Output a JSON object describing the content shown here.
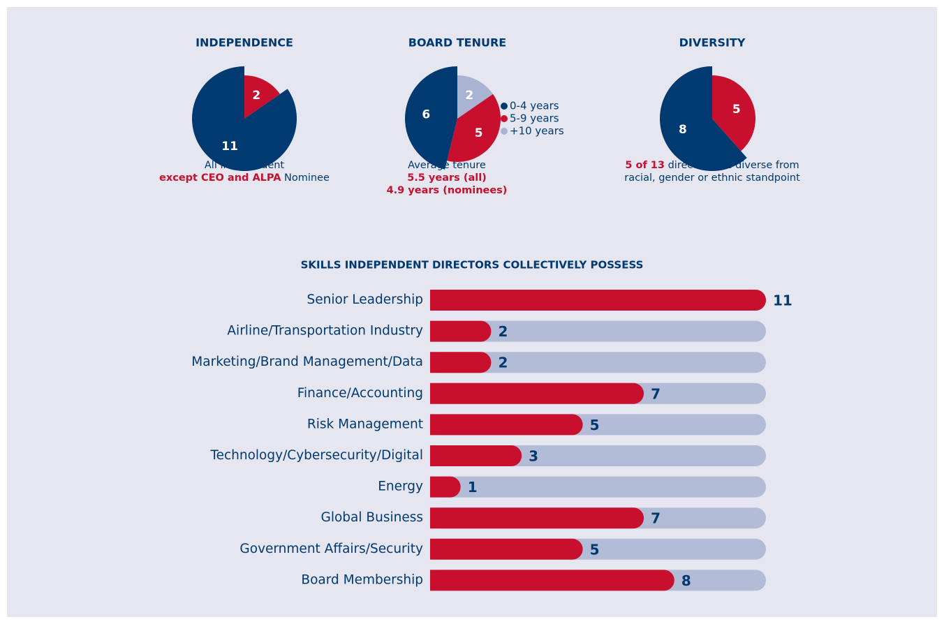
{
  "chart_data": [
    {
      "type": "pie",
      "title": "INDEPENDENCE",
      "slices": [
        {
          "value": 2,
          "color": "#c8102e"
        },
        {
          "value": 11,
          "color": "#003a70"
        }
      ],
      "notes": [
        [
          {
            "text": "All independent",
            "color": "#003a70",
            "bold": false
          }
        ],
        [
          {
            "text": "except CEO and ALPA",
            "color": "#c8102e",
            "bold": true
          },
          {
            "text": " Nominee",
            "color": "#003a70",
            "bold": false
          }
        ]
      ]
    },
    {
      "type": "pie",
      "title": "BOARD TENURE",
      "slices": [
        {
          "name": "+10 years",
          "value": 2,
          "color": "#a9b3d2"
        },
        {
          "name": "5-9 years",
          "value": 5,
          "color": "#c8102e"
        },
        {
          "name": "0-4 years",
          "value": 6,
          "color": "#003a70"
        }
      ],
      "legend": {
        "reverse": true
      },
      "notes": [
        [
          {
            "text": "Average tenure",
            "color": "#003a70",
            "bold": false
          }
        ],
        [
          {
            "text": "5.5 years (all)",
            "color": "#c8102e",
            "bold": true
          }
        ],
        [
          {
            "text": "4.9 years (nominees)",
            "color": "#c8102e",
            "bold": true
          }
        ]
      ]
    },
    {
      "type": "pie",
      "title": "DIVERSITY",
      "slices": [
        {
          "value": 5,
          "color": "#c8102e"
        },
        {
          "value": 8,
          "color": "#003a70"
        }
      ],
      "notes": [
        [
          {
            "text": "5 of 13",
            "color": "#c8102e",
            "bold": true
          },
          {
            "text": " directors are diverse from",
            "color": "#003a70",
            "bold": false
          }
        ],
        [
          {
            "text": "racial, gender or ethnic standpoint",
            "color": "#003a70",
            "bold": false
          }
        ]
      ]
    },
    {
      "type": "bar",
      "title": "SKILLS INDEPENDENT DIRECTORS COLLECTIVELY POSSESS",
      "categories": [
        "Senior Leadership",
        "Airline/Transportation Industry",
        "Marketing/Brand Management/Data",
        "Finance/Accounting",
        "Risk Management",
        "Technology/Cybersecurity/Digital",
        "Energy",
        "Global Business",
        "Government Affairs/Security",
        "Board Membership"
      ],
      "values": [
        11,
        2,
        2,
        7,
        5,
        3,
        1,
        7,
        5,
        8
      ],
      "color": "#c8102e",
      "track_color": "#b3bcd6",
      "xlim": [
        0,
        11
      ]
    }
  ]
}
